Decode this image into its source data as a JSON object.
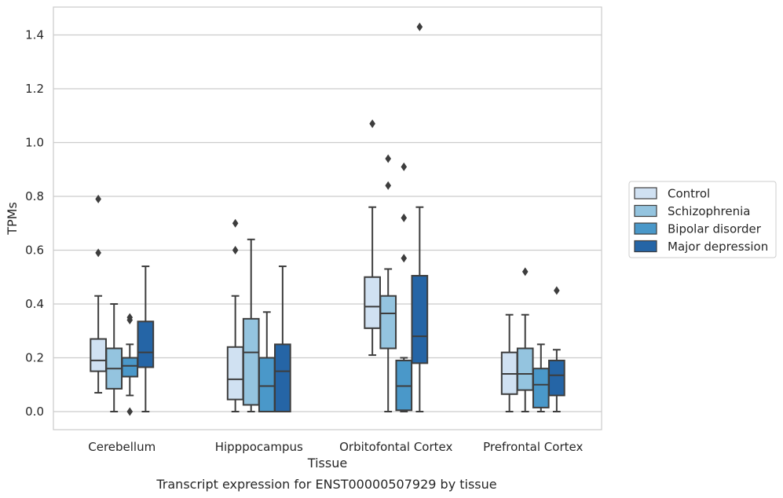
{
  "caption": "Transcript expression for ENST00000507929 by tissue",
  "chart_data": {
    "type": "box",
    "xlabel": "Tissue",
    "ylabel": "TPMs",
    "ylim": [
      -0.07,
      1.5
    ],
    "yticks": [
      0.0,
      0.2,
      0.4,
      0.6,
      0.8,
      1.0,
      1.2,
      1.4
    ],
    "ytick_labels": [
      "0.0",
      "0.2",
      "0.4",
      "0.6",
      "0.8",
      "1.0",
      "1.2",
      "1.4"
    ],
    "grid": "horizontal",
    "legend_position": "right",
    "categories": [
      "Cerebellum",
      "Hipppocampus",
      "Orbitofontal Cortex",
      "Prefrontal Cortex"
    ],
    "series": [
      {
        "name": "Control",
        "color": "#d0e1f2",
        "boxes": [
          {
            "whisker_low": 0.07,
            "q1": 0.15,
            "median": 0.19,
            "q3": 0.27,
            "whisker_high": 0.43,
            "outliers": [
              0.59,
              0.79
            ]
          },
          {
            "whisker_low": 0.0,
            "q1": 0.045,
            "median": 0.12,
            "q3": 0.24,
            "whisker_high": 0.43,
            "outliers": [
              0.6,
              0.7
            ]
          },
          {
            "whisker_low": 0.21,
            "q1": 0.31,
            "median": 0.39,
            "q3": 0.5,
            "whisker_high": 0.76,
            "outliers": [
              1.07
            ]
          },
          {
            "whisker_low": 0.0,
            "q1": 0.065,
            "median": 0.14,
            "q3": 0.22,
            "whisker_high": 0.36,
            "outliers": []
          }
        ]
      },
      {
        "name": "Schizophrenia",
        "color": "#94c4df",
        "boxes": [
          {
            "whisker_low": 0.0,
            "q1": 0.085,
            "median": 0.16,
            "q3": 0.235,
            "whisker_high": 0.4,
            "outliers": []
          },
          {
            "whisker_low": 0.0,
            "q1": 0.025,
            "median": 0.22,
            "q3": 0.345,
            "whisker_high": 0.64,
            "outliers": []
          },
          {
            "whisker_low": 0.0,
            "q1": 0.235,
            "median": 0.365,
            "q3": 0.43,
            "whisker_high": 0.53,
            "outliers": [
              0.84,
              0.94
            ]
          },
          {
            "whisker_low": 0.0,
            "q1": 0.08,
            "median": 0.14,
            "q3": 0.235,
            "whisker_high": 0.36,
            "outliers": [
              0.52
            ]
          }
        ]
      },
      {
        "name": "Bipolar disorder",
        "color": "#4a98c9",
        "boxes": [
          {
            "whisker_low": 0.06,
            "q1": 0.13,
            "median": 0.17,
            "q3": 0.2,
            "whisker_high": 0.25,
            "outliers": [
              0.0,
              0.34,
              0.35
            ]
          },
          {
            "whisker_low": 0.0,
            "q1": 0.0,
            "median": 0.095,
            "q3": 0.2,
            "whisker_high": 0.37,
            "outliers": []
          },
          {
            "whisker_low": 0.0,
            "q1": 0.005,
            "median": 0.095,
            "q3": 0.19,
            "whisker_high": 0.2,
            "outliers": [
              0.57,
              0.72,
              0.91
            ]
          },
          {
            "whisker_low": 0.0,
            "q1": 0.015,
            "median": 0.1,
            "q3": 0.16,
            "whisker_high": 0.25,
            "outliers": []
          }
        ]
      },
      {
        "name": "Major depression",
        "color": "#2565a6",
        "boxes": [
          {
            "whisker_low": 0.0,
            "q1": 0.165,
            "median": 0.22,
            "q3": 0.335,
            "whisker_high": 0.54,
            "outliers": []
          },
          {
            "whisker_low": 0.0,
            "q1": 0.0,
            "median": 0.15,
            "q3": 0.25,
            "whisker_high": 0.54,
            "outliers": []
          },
          {
            "whisker_low": 0.0,
            "q1": 0.18,
            "median": 0.28,
            "q3": 0.505,
            "whisker_high": 0.76,
            "outliers": [
              1.43
            ]
          },
          {
            "whisker_low": 0.0,
            "q1": 0.06,
            "median": 0.135,
            "q3": 0.19,
            "whisker_high": 0.23,
            "outliers": [
              0.45
            ]
          }
        ]
      }
    ]
  }
}
